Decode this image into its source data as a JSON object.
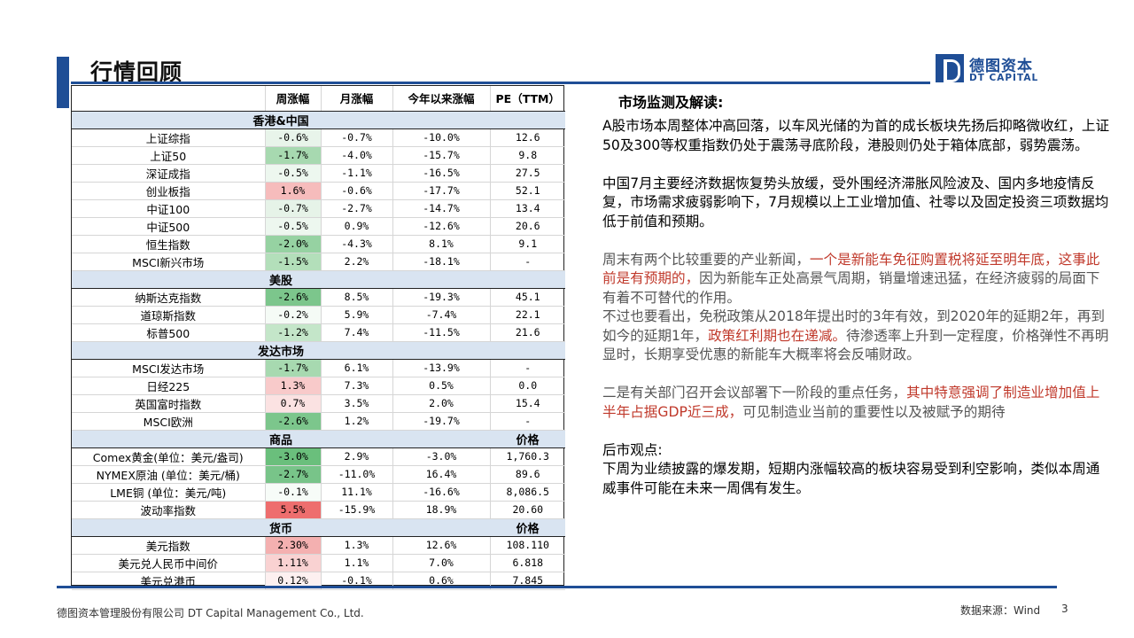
{
  "header": {
    "title": "行情回顾"
  },
  "logo": {
    "cn": "德图资本",
    "en": "DT CAPITAL"
  },
  "table": {
    "columns": [
      "",
      "周涨幅",
      "月涨幅",
      "今年以来涨幅",
      "PE（TTM）"
    ],
    "sections": [
      {
        "title": "香港&中国",
        "price_header": "",
        "rows": [
          {
            "name": "上证综指",
            "week": "-0.6%",
            "month": "-0.7%",
            "ytd": "-10.0%",
            "pe": "12.6",
            "color": "#e8f4ea"
          },
          {
            "name": "上证50",
            "week": "-1.7%",
            "month": "-4.0%",
            "ytd": "-15.7%",
            "pe": "9.8",
            "color": "#a7d9b0"
          },
          {
            "name": "深证成指",
            "week": "-0.5%",
            "month": "-1.1%",
            "ytd": "-16.5%",
            "pe": "27.5",
            "color": "#edf7ef"
          },
          {
            "name": "创业板指",
            "week": "1.6%",
            "month": "-0.6%",
            "ytd": "-17.7%",
            "pe": "52.1",
            "color": "#f6bcbc"
          },
          {
            "name": "中证100",
            "week": "-0.7%",
            "month": "-2.7%",
            "ytd": "-14.7%",
            "pe": "13.4",
            "color": "#e6f3e8"
          },
          {
            "name": "中证500",
            "week": "-0.5%",
            "month": "0.9%",
            "ytd": "-12.6%",
            "pe": "20.6",
            "color": "#edf7ef"
          },
          {
            "name": "恒生指数",
            "week": "-2.0%",
            "month": "-4.3%",
            "ytd": "8.1%",
            "pe": "9.1",
            "color": "#96d2a2"
          },
          {
            "name": "MSCI新兴市场",
            "week": "-1.5%",
            "month": "2.2%",
            "ytd": "-18.1%",
            "pe": "-",
            "color": "#b3dfba"
          }
        ]
      },
      {
        "title": "美股",
        "price_header": "",
        "rows": [
          {
            "name": "纳斯达克指数",
            "week": "-2.6%",
            "month": "8.5%",
            "ytd": "-19.3%",
            "pe": "45.1",
            "color": "#7cc68c"
          },
          {
            "name": "道琼斯指数",
            "week": "-0.2%",
            "month": "5.9%",
            "ytd": "-7.4%",
            "pe": "22.1",
            "color": "#f5fbf6"
          },
          {
            "name": "标普500",
            "week": "-1.2%",
            "month": "7.4%",
            "ytd": "-11.5%",
            "pe": "21.6",
            "color": "#c4e6c9"
          }
        ]
      },
      {
        "title": "发达市场",
        "price_header": "",
        "rows": [
          {
            "name": "MSCI发达市场",
            "week": "-1.7%",
            "month": "6.1%",
            "ytd": "-13.9%",
            "pe": "-",
            "color": "#a7d9b0"
          },
          {
            "name": "日经225",
            "week": "1.3%",
            "month": "7.3%",
            "ytd": "0.5%",
            "pe": "0.0",
            "color": "#f8caca"
          },
          {
            "name": "英国富时指数",
            "week": "0.7%",
            "month": "3.5%",
            "ytd": "2.0%",
            "pe": "15.4",
            "color": "#fbe2e2"
          },
          {
            "name": "MSCI欧洲",
            "week": "-2.6%",
            "month": "1.2%",
            "ytd": "-19.7%",
            "pe": "-",
            "color": "#7cc68c"
          }
        ]
      },
      {
        "title": "商品",
        "price_header": "价格",
        "rows": [
          {
            "name": "Comex黄金(单位：美元/盎司)",
            "week": "-3.0%",
            "month": "2.9%",
            "ytd": "-3.0%",
            "pe": "1,760.3",
            "color": "#6abf7c"
          },
          {
            "name": "NYMEX原油 (单位：美元/桶)",
            "week": "-2.7%",
            "month": "-11.0%",
            "ytd": "16.4%",
            "pe": "89.6",
            "color": "#78c489"
          },
          {
            "name": "LME铜 (单位：美元/吨)",
            "week": "-0.1%",
            "month": "11.1%",
            "ytd": "-16.6%",
            "pe": "8,086.5",
            "color": "#f7fcf8"
          },
          {
            "name": "波动率指数",
            "week": "5.5%",
            "month": "-15.9%",
            "ytd": "18.9%",
            "pe": "20.60",
            "color": "#ee6e6e"
          }
        ]
      },
      {
        "title": "货币",
        "price_header": "价格",
        "rows": [
          {
            "name": "美元指数",
            "week": "2.30%",
            "month": "1.3%",
            "ytd": "12.6%",
            "pe": "108.110",
            "color": "#f4b0b0"
          },
          {
            "name": "美元兑人民币中间价",
            "week": "1.11%",
            "month": "1.1%",
            "ytd": "7.0%",
            "pe": "6.818",
            "color": "#f9d2d2"
          },
          {
            "name": "美元兑港币",
            "week": "0.12%",
            "month": "-0.1%",
            "ytd": "0.6%",
            "pe": "7.845",
            "color": "#fdf0f0"
          }
        ]
      }
    ]
  },
  "commentary": {
    "heading": "市场监测及解读:",
    "p1": "A股市场本周整体冲高回落，以车风光储的为首的成长板块先扬后抑略微收红，上证50及300等权重指数仍处于震荡寻底阶段，港股则仍处于箱体底部，弱势震荡。",
    "p2": "中国7月主要经济数据恢复势头放缓，受外围经济滞胀风险波及、国内多地疫情反复，市场需求疲弱影响下，7月规模以上工业增加值、社零以及固定投资三项数据均低于前值和预期。",
    "p3a": "周末有两个比较重要的产业新闻，",
    "p3b": "一个是新能车免征购置税将延至明年底，这事此前是有预期的，",
    "p3c": "因为新能车正处高景气周期，销量增速迅猛，在经济疲弱的局面下有着不可替代的作用。",
    "p4a": "不过也要看出，免税政策从2018年提出时的3年有效，到2020年的延期2年，再到如今的延期1年，",
    "p4b": "政策红利期也在递减。",
    "p4c": "待渗透率上升到一定程度，价格弹性不再明显时，长期享受优惠的新能车大概率将会反哺财政。",
    "p5a": "二是有关部门召开会议部署下一阶段的重点任务，",
    "p5b": "其中特意强调了制造业增加值上半年占据GDP近三成，",
    "p5c": "可见制造业当前的重要性以及被赋予的期待",
    "p6a": "后市观点:",
    "p6b": "下周为业绩披露的爆发期，短期内涨幅较高的板块容易受到利空影响，类似本周通威事件可能在未来一周偶有发生。"
  },
  "footer": {
    "company": "德图资本管理股份有限公司  DT Capital Management  Co., Ltd.",
    "source": "数据来源：Wind",
    "page": "3"
  }
}
